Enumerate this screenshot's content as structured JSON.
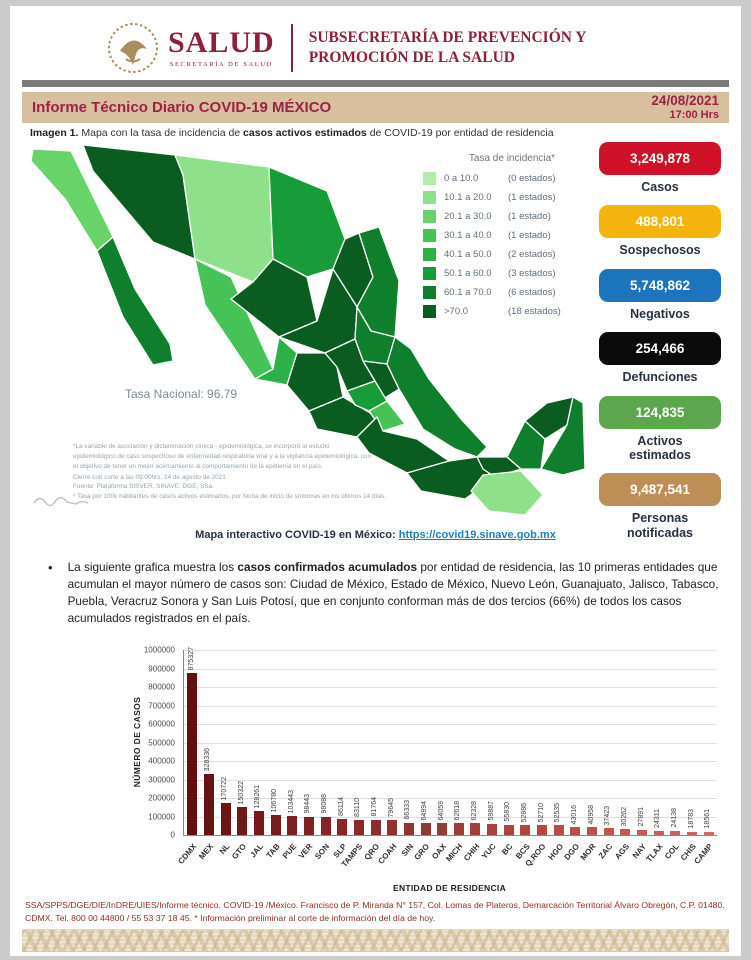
{
  "header": {
    "logo_title": "SALUD",
    "logo_subtitle": "SECRETARÍA DE SALUD",
    "sub1": "SUBSECRETARÍA DE PREVENCIÓN Y",
    "sub2": "PROMOCIÓN DE LA SALUD"
  },
  "title_bar": {
    "title": "Informe Técnico Diario COVID-19 MÉXICO",
    "date": "24/08/2021",
    "time": "17:00 Hrs"
  },
  "caption": {
    "prefix": "Imagen 1.",
    "pre": " Mapa con la tasa de incidencia de ",
    "bold": "casos activos estimados",
    "post": " de COVID-19 por entidad de residencia"
  },
  "map": {
    "legend_title": "Tasa de incidencia*",
    "legend": [
      {
        "range": "0   a  10.0",
        "count": "(0 estados)",
        "color": "#b5ecad"
      },
      {
        "range": "10.1 a  20.0",
        "count": "(1 estados)",
        "color": "#8fe08a"
      },
      {
        "range": "20.1 a  30.0",
        "count": "(1 estado)",
        "color": "#67d369"
      },
      {
        "range": "30.1 a  40.0",
        "count": "(1 estado)",
        "color": "#46c257"
      },
      {
        "range": "40.1 a  50.0",
        "count": "(2 estados)",
        "color": "#2cb148"
      },
      {
        "range": "50.1 a  60.0",
        "count": "(3 estados)",
        "color": "#179c39"
      },
      {
        "range": "60.1 a  70.0",
        "count": "(6 estados)",
        "color": "#0f7e2d"
      },
      {
        "range": ">70.0",
        "count": "(18 estados)",
        "color": "#0b5c20"
      }
    ],
    "tasa_nacional": "Tasa Nacional: 96.79",
    "footnote1": "*La variable de asociación y dictaminación clínica - epidemiológica, se incorporó al estudio epidemiológico de caso sospechoso de enfermedad respiratoria viral y a la vigilancia epidemiológica, con el objetivo de tener un mejor acercamiento al comportamiento de la epidemia en el país.",
    "closing_line1": "Cierre con corte a las 09:00hrs, 24 de agosto de 2021",
    "closing_line2": "Fuente: Plataforma SISVER, SINAVE, DGE, SSa.",
    "closing_line3": "* Tasa por 100k habitantes de casos activos estimados, por fecha de inicio de síntomas en los últimos 14 días.",
    "link_label": "Mapa interactivo COVID-19 en México:",
    "link_url": "https://covid19.sinave.gob.mx"
  },
  "stats": [
    {
      "value": "3,249,878",
      "label": "Casos",
      "color": "#ce1126"
    },
    {
      "value": "488,801",
      "label": "Sospechosos",
      "color": "#f5b40d"
    },
    {
      "value": "5,748,862",
      "label": "Negativos",
      "color": "#1c75bc"
    },
    {
      "value": "254,466",
      "label": "Defunciones",
      "color": "#0b0b0b"
    },
    {
      "value": "124,835",
      "label": "Activos estimados",
      "color": "#5ca74d"
    },
    {
      "value": "9,487,541",
      "label": "Personas notificadas",
      "color": "#bd8e55"
    }
  ],
  "bullet": {
    "pre": "La siguiente grafica muestra los ",
    "bold": "casos confirmados acumulados",
    "post": " por entidad de residencia, las 10 primeras entidades que acumulan el mayor número de casos son: Ciudad de México, Estado de México, Nuevo León, Guanajuato, Jalisco, Tabasco, Puebla, Veracruz Sonora y San Luis Potosí, que en conjunto conforman más de dos tercios (66%) de todos los casos acumulados registrados en el país."
  },
  "chart_data": {
    "type": "bar",
    "title": "",
    "xlabel": "ENTIDAD DE RESIDENCIA",
    "ylabel": "NÚMERO DE CASOS",
    "ylim": [
      0,
      1000000
    ],
    "ytick_step": 100000,
    "grid": true,
    "value_labels": true,
    "bar_color_start": "#641010",
    "bar_color_end": "#d5655e",
    "categories": [
      "CDMX",
      "MEX",
      "NL",
      "GTO",
      "JAL",
      "TAB",
      "PUE",
      "VER",
      "SON",
      "SLP",
      "TAMPS",
      "QRO",
      "COAH",
      "SIN",
      "GRO",
      "OAX",
      "MICH",
      "CHIH",
      "YUC",
      "BC",
      "BCS",
      "Q.ROO",
      "HGO",
      "DGO",
      "MOR",
      "ZAC",
      "AGS",
      "NAY",
      "TLAX",
      "COL",
      "CHIS",
      "CAMP"
    ],
    "values": [
      875327,
      328336,
      170722,
      150322,
      128261,
      106780,
      103443,
      98443,
      98088,
      86114,
      83110,
      81764,
      79645,
      66333,
      64994,
      64059,
      62618,
      62328,
      59887,
      55830,
      52886,
      52710,
      52535,
      43016,
      40958,
      37423,
      30262,
      27891,
      24311,
      24138,
      18783,
      18561
    ]
  },
  "footer": {
    "text": "SSA/SPPS/DGE/DIE/InDRE/UIES/Informe técnico. COVID-19 /México. Francisco de P. Miranda N° 157, Col. Lomas de Plateros, Demarcación Territorial Álvaro Obregón, C.P. 01480. CDMX. Tel. 800 00 44800 / 55 53 37 18 45. * Información preliminar al corte de información del día de hoy."
  }
}
